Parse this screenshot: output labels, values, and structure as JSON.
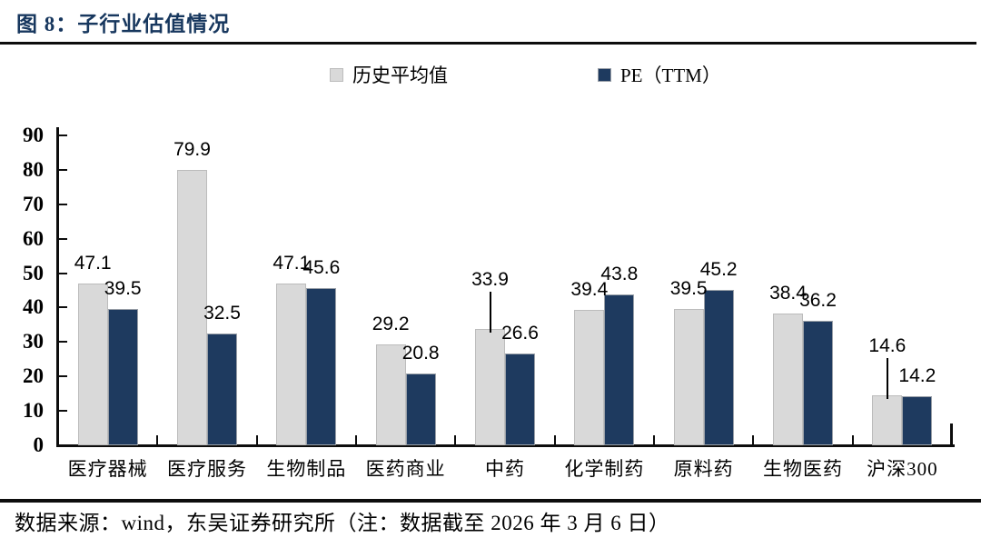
{
  "title": "图 8：子行业估值情况",
  "footer": {
    "text": "数据来源：wind，东吴证券研究所（注：数据截至 2026 年 3 月 6 日）"
  },
  "chart_data": {
    "type": "bar",
    "title": "子行业估值情况",
    "figure_label": "图 8",
    "categories": [
      "医疗器械",
      "医疗服务",
      "生物制品",
      "医药商业",
      "中药",
      "化学制药",
      "原料药",
      "生物医药",
      "沪深300"
    ],
    "series": [
      {
        "name": "历史平均值",
        "color": "#d9d9d9",
        "border_color": "#bcbcbc",
        "values": [
          47.1,
          79.9,
          47.1,
          29.2,
          33.9,
          39.4,
          39.5,
          38.4,
          14.6
        ]
      },
      {
        "name": "PE（TTM）",
        "color": "#1e3a5f",
        "border_color": "#9aa0a8",
        "values": [
          39.5,
          32.5,
          45.6,
          20.8,
          26.6,
          43.8,
          45.2,
          36.2,
          14.2
        ]
      }
    ],
    "ylim": [
      0,
      90
    ],
    "ytick_step": 10,
    "yticks": [
      0,
      10,
      20,
      30,
      40,
      50,
      60,
      70,
      80,
      90
    ],
    "grid": false,
    "legend_position": "top",
    "value_labels": true,
    "value_label_decimals": 1,
    "leader_lines": [
      {
        "series": 0,
        "category": 4,
        "lift": 44
      },
      {
        "series": 0,
        "category": 8,
        "lift": 44
      }
    ]
  }
}
